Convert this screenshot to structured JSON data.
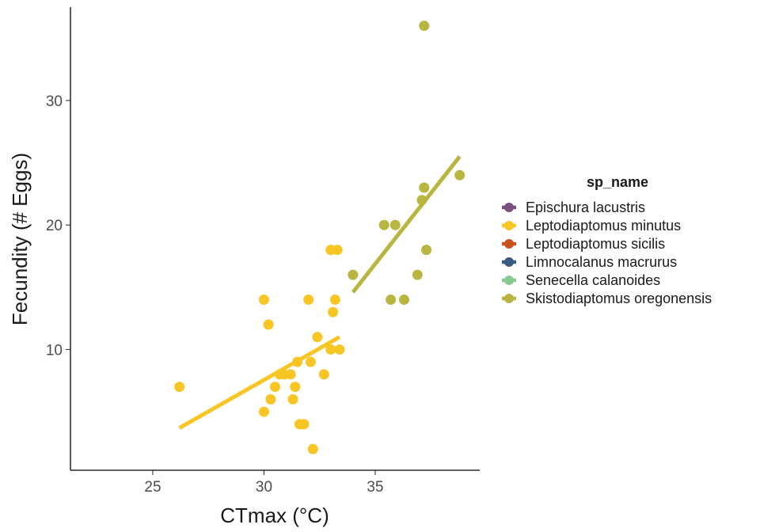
{
  "chart_data": {
    "type": "scatter",
    "title": "",
    "xlabel": "CTmax (°C)",
    "ylabel": "Fecundity (# Eggs)",
    "xlim": [
      21.3,
      39.7
    ],
    "ylim": [
      0.3,
      37.5
    ],
    "xticks": [
      25,
      30,
      35
    ],
    "yticks": [
      10,
      20,
      30
    ],
    "grid": false,
    "legend": {
      "title": "sp_name",
      "position": "right",
      "entries": [
        {
          "name": "Epischura lacustris",
          "color": "#7B4F7E"
        },
        {
          "name": "Leptodiaptomus minutus",
          "color": "#F7C524"
        },
        {
          "name": "Leptodiaptomus sicilis",
          "color": "#C8531E"
        },
        {
          "name": "Limnocalanus macrurus",
          "color": "#3B5B7E"
        },
        {
          "name": "Senecella calanoides",
          "color": "#88C892"
        },
        {
          "name": "Skistodiaptomus oregonensis",
          "color": "#B8B640"
        }
      ]
    },
    "series": [
      {
        "name": "Leptodiaptomus minutus",
        "color": "#F7C524",
        "points": [
          [
            26.2,
            7
          ],
          [
            30.0,
            14
          ],
          [
            30.2,
            12
          ],
          [
            30.0,
            5
          ],
          [
            30.3,
            6
          ],
          [
            30.5,
            7
          ],
          [
            30.7,
            8
          ],
          [
            30.9,
            8
          ],
          [
            31.2,
            8
          ],
          [
            31.3,
            6
          ],
          [
            31.4,
            7
          ],
          [
            31.5,
            9
          ],
          [
            31.6,
            4
          ],
          [
            31.8,
            4
          ],
          [
            32.0,
            14
          ],
          [
            32.1,
            9
          ],
          [
            32.2,
            2
          ],
          [
            32.4,
            11
          ],
          [
            32.7,
            8
          ],
          [
            33.0,
            18
          ],
          [
            33.3,
            18
          ],
          [
            33.0,
            10
          ],
          [
            33.1,
            13
          ],
          [
            33.2,
            14
          ],
          [
            33.4,
            10
          ]
        ],
        "fit": [
          [
            26.2,
            3.7
          ],
          [
            33.4,
            11.0
          ]
        ]
      },
      {
        "name": "Skistodiaptomus oregonensis",
        "color": "#B8B640",
        "points": [
          [
            34.0,
            16
          ],
          [
            35.4,
            20
          ],
          [
            35.7,
            14
          ],
          [
            35.9,
            20
          ],
          [
            36.3,
            14
          ],
          [
            36.9,
            16
          ],
          [
            37.1,
            22
          ],
          [
            37.2,
            23
          ],
          [
            37.3,
            18
          ],
          [
            37.2,
            36
          ],
          [
            38.8,
            24
          ]
        ],
        "fit": [
          [
            34.0,
            14.6
          ],
          [
            38.8,
            25.5
          ]
        ]
      }
    ]
  }
}
